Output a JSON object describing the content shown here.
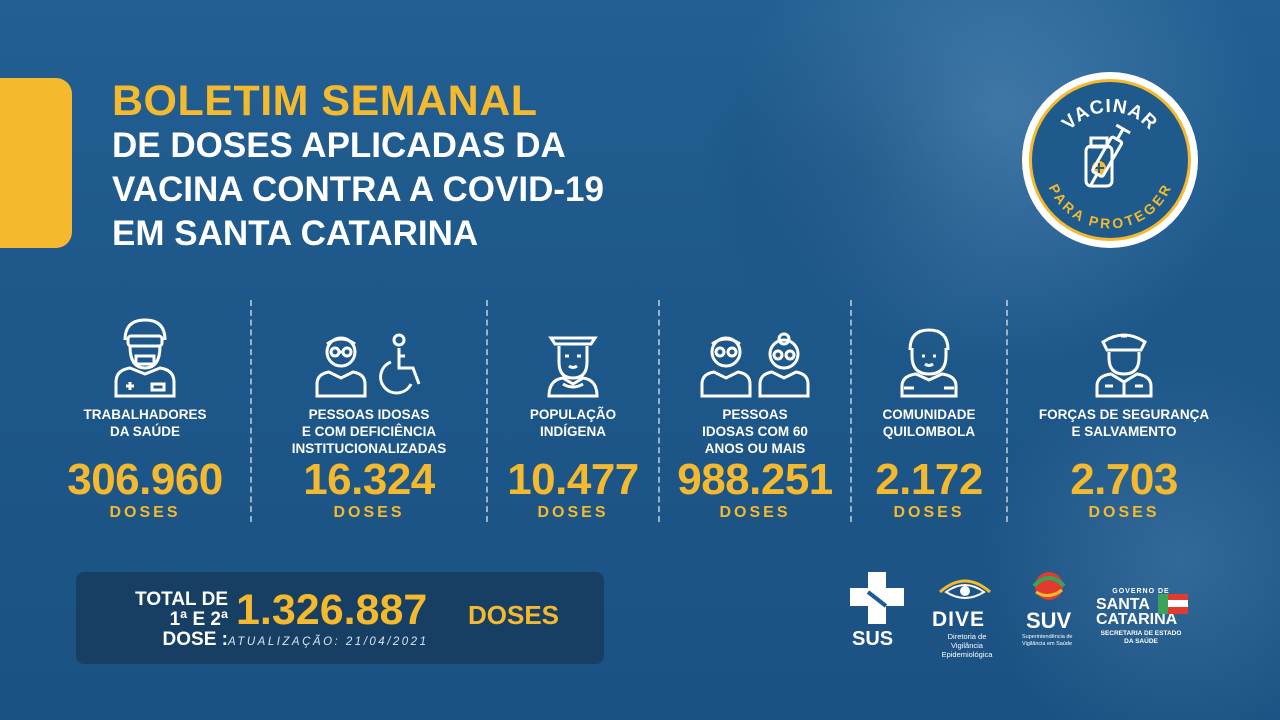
{
  "header": {
    "title": "BOLETIM SEMANAL",
    "subtitle_lines": [
      "DE DOSES APLICADAS DA",
      "VACINA CONTRA A COVID-19",
      "EM SANTA CATARINA"
    ]
  },
  "badge": {
    "top_text": "VACINAR",
    "bottom_text": "PARA PROTEGER"
  },
  "stats": [
    {
      "label": "TRABALHADORES\nDA SAÚDE",
      "value": "306.960",
      "unit": "DOSES",
      "icon": "health-worker-icon"
    },
    {
      "label": "PESSOAS IDOSAS\nE COM DEFICIÊNCIA\nINSTITUCIONALIZADAS",
      "value": "16.324",
      "unit": "DOSES",
      "icon": "elderly-wheelchair-icon"
    },
    {
      "label": "POPULAÇÃO\nINDÍGENA",
      "value": "10.477",
      "unit": "DOSES",
      "icon": "indigenous-person-icon"
    },
    {
      "label": "PESSOAS\nIDOSAS COM 60\nANOS OU MAIS",
      "value": "988.251",
      "unit": "DOSES",
      "icon": "elderly-couple-icon"
    },
    {
      "label": "COMUNIDADE\nQUILOMBOLA",
      "value": "2.172",
      "unit": "DOSES",
      "icon": "quilombola-person-icon"
    },
    {
      "label": "FORÇAS DE SEGURANÇA\nE  SALVAMENTO",
      "value": "2.703",
      "unit": "DOSES",
      "icon": "security-officer-icon"
    }
  ],
  "total": {
    "label_line1": "TOTAL DE",
    "label_line2": "1ª E 2ª DOSE :",
    "value": "1.326.887",
    "unit": "DOSES",
    "update": "ATUALIZAÇÃO: 21/04/2021"
  },
  "logos": {
    "sus": "SUS",
    "dive": "DIVE",
    "dive_sub": "Diretoria de Vigilância Epidemiológica",
    "suv": "SUV",
    "suv_sub": "Superintendência de Vigilância em Saúde",
    "sc_gov": "GOVERNO DE",
    "sc_name_1": "SANTA",
    "sc_name_2": "CATARINA",
    "sc_sub": "SECRETARIA DE ESTADO DA SAÚDE"
  },
  "colors": {
    "background": "#1f5b8c",
    "accent": "#f5b92e",
    "text": "#ffffff",
    "total_box": "#173f64"
  }
}
